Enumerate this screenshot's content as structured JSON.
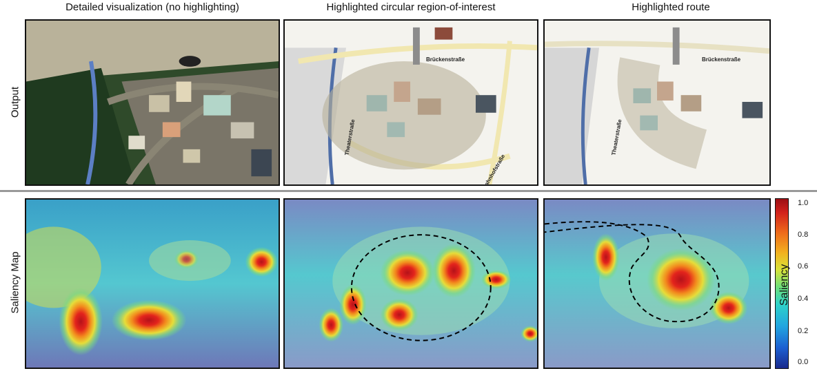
{
  "columns": [
    {
      "title": "Detailed visualization (no highlighting)"
    },
    {
      "title": "Highlighted circular region-of-interest"
    },
    {
      "title": "Highlighted route"
    }
  ],
  "rows": {
    "output": "Output",
    "saliency": "Saliency Map"
  },
  "street_labels": {
    "brueckenstrasse": "Brückenstraße",
    "theaterstrasse": "Theaterstraße",
    "bahnhofstrasse": "Bahnhofstraße"
  },
  "colorbar": {
    "title": "Saliency",
    "ticks": [
      "1.0",
      "0.8",
      "0.6",
      "0.4",
      "0.2",
      "0.0"
    ],
    "range": [
      0,
      1
    ],
    "colormap": "jet"
  },
  "colors": {
    "border": "#111111",
    "divider": "#999999"
  }
}
